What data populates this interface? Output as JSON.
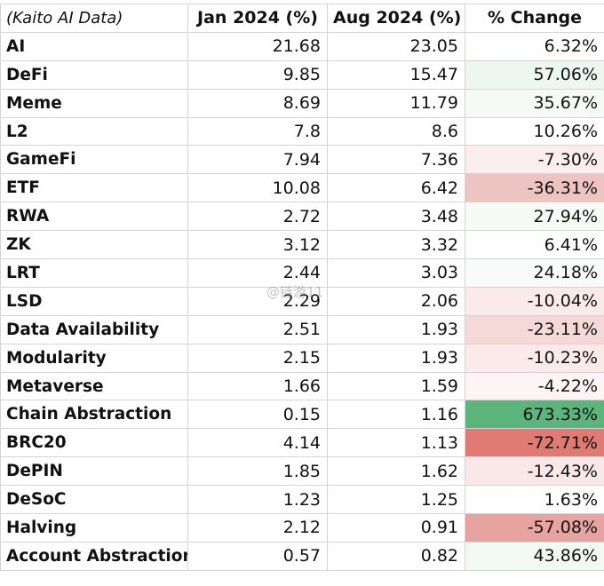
{
  "header": {
    "source": "(Kaito AI Data)",
    "jan": "Jan 2024 (%)",
    "aug": "Aug 2024 (%)",
    "change": "% Change"
  },
  "rows": [
    {
      "category": "AI",
      "jan": "21.68",
      "aug": "23.05",
      "change": "6.32%",
      "color": "#ffffff"
    },
    {
      "category": "DeFi",
      "jan": "9.85",
      "aug": "15.47",
      "change": "57.06%",
      "color": "#eef6f0"
    },
    {
      "category": "Meme",
      "jan": "8.69",
      "aug": "11.79",
      "change": "35.67%",
      "color": "#f5faf6"
    },
    {
      "category": "L2",
      "jan": "7.8",
      "aug": "8.6",
      "change": "10.26%",
      "color": "#ffffff"
    },
    {
      "category": "GameFi",
      "jan": "7.94",
      "aug": "7.36",
      "change": "-7.30%",
      "color": "#fbeeee"
    },
    {
      "category": "ETF",
      "jan": "10.08",
      "aug": "6.42",
      "change": "-36.31%",
      "color": "#eec4c2"
    },
    {
      "category": "RWA",
      "jan": "2.72",
      "aug": "3.48",
      "change": "27.94%",
      "color": "#f7fbf8"
    },
    {
      "category": "ZK",
      "jan": "3.12",
      "aug": "3.32",
      "change": "6.41%",
      "color": "#ffffff"
    },
    {
      "category": "LRT",
      "jan": "2.44",
      "aug": "3.03",
      "change": "24.18%",
      "color": "#f8fbf9"
    },
    {
      "category": "LSD",
      "jan": "2.29",
      "aug": "2.06",
      "change": "-10.04%",
      "color": "#fbeaea"
    },
    {
      "category": "Data Availability",
      "jan": "2.51",
      "aug": "1.93",
      "change": "-23.11%",
      "color": "#f5d9d8"
    },
    {
      "category": "Modularity",
      "jan": "2.15",
      "aug": "1.93",
      "change": "-10.23%",
      "color": "#fbeaea"
    },
    {
      "category": "Metaverse",
      "jan": "1.66",
      "aug": "1.59",
      "change": "-4.22%",
      "color": "#fdf5f5"
    },
    {
      "category": "Chain Abstraction",
      "jan": "0.15",
      "aug": "1.16",
      "change": "673.33%",
      "color": "#5cb67c"
    },
    {
      "category": "BRC20",
      "jan": "4.14",
      "aug": "1.13",
      "change": "-72.71%",
      "color": "#e07a73"
    },
    {
      "category": "DePIN",
      "jan": "1.85",
      "aug": "1.62",
      "change": "-12.43%",
      "color": "#fae8e8"
    },
    {
      "category": "DeSoC",
      "jan": "1.23",
      "aug": "1.25",
      "change": "1.63%",
      "color": "#ffffff"
    },
    {
      "category": "Halving",
      "jan": "2.12",
      "aug": "0.91",
      "change": "-57.08%",
      "color": "#e6a3a0"
    },
    {
      "category": "Account Abstraction",
      "jan": "0.57",
      "aug": "0.82",
      "change": "43.86%",
      "color": "#f2f8f4"
    }
  ],
  "watermark": "@链游11"
}
